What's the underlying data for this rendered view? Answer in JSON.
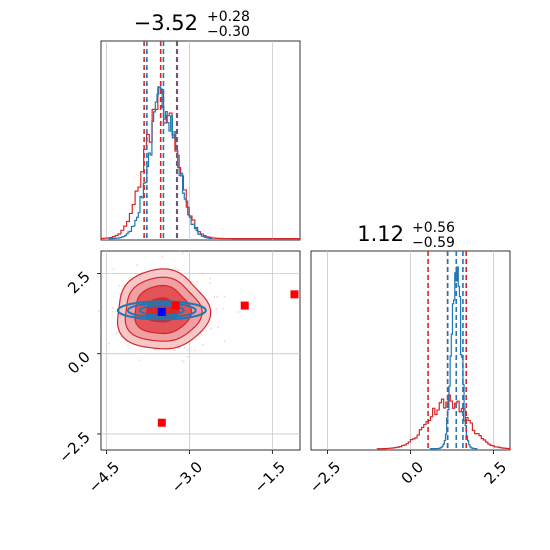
{
  "colors": {
    "red": "#d62728",
    "blue": "#1f77b4",
    "grid": "#c8c8c8",
    "scatter_blue_square": "#0000ff",
    "scatter_red_square": "#ff0000"
  },
  "chart_data": {
    "type": "corner",
    "parameters": [
      {
        "title_main": "−3.52",
        "title_sup": "+0.28",
        "title_sub": "−0.30",
        "range": [
          -4.6,
          -1.0
        ],
        "ticks": [
          -4.5,
          -3.0,
          -1.5
        ],
        "tick_labels": [
          "−4.5",
          "−3.0",
          "−1.5"
        ],
        "quantiles_red": [
          -3.82,
          -3.23
        ],
        "quantiles_blue": [
          -3.77,
          -3.22
        ],
        "median_red": -3.52,
        "median_blue": -3.47
      },
      {
        "title_main": "1.12",
        "title_sup": "+0.56",
        "title_sub": "−0.59",
        "range": [
          -3.0,
          3.0
        ],
        "ticks": [
          -2.5,
          0.0,
          2.5
        ],
        "tick_labels": [
          "−2.5",
          "0.0",
          "2.5"
        ],
        "quantiles_red": [
          0.53,
          1.68
        ],
        "quantiles_blue": [
          1.12,
          1.58
        ],
        "median_red": 1.12,
        "median_blue": 1.38
      }
    ],
    "joint": {
      "x_range": [
        -4.6,
        -1.0
      ],
      "y_range": [
        -3.0,
        3.2
      ],
      "y_ticks": [
        -2.5,
        0.0,
        2.5
      ],
      "y_tick_labels": [
        "−2.5",
        "0.0",
        "2.5"
      ],
      "red_points": [
        {
          "x": -3.25,
          "y": 1.5
        },
        {
          "x": -2.0,
          "y": 1.5
        },
        {
          "x": -1.1,
          "y": 1.85
        },
        {
          "x": -3.5,
          "y": -2.15
        }
      ],
      "blue_points": [
        {
          "x": -3.5,
          "y": 1.3
        }
      ]
    },
    "grid": true
  }
}
